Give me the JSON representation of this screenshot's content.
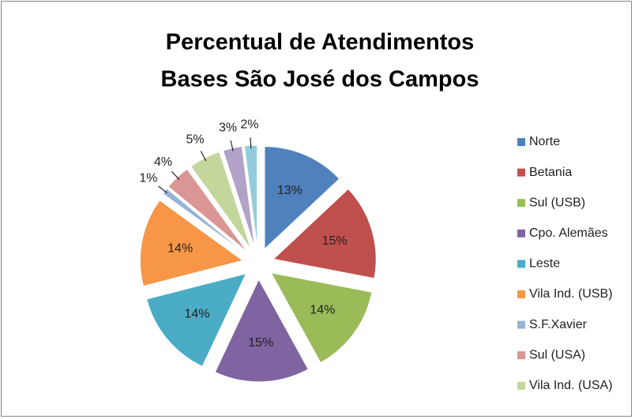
{
  "chart_data": {
    "type": "pie",
    "title": "Percentual de Atendimentos",
    "subtitle": "Bases São José dos Campos",
    "categories": [
      "Norte",
      "Betania",
      "Sul (USB)",
      "Cpo. Alemães",
      "Leste",
      "Vila Ind. (USB)",
      "S.F.Xavier",
      "Sul (USA)",
      "Vila Ind. (USA)",
      null,
      null
    ],
    "values": [
      13,
      15,
      14,
      15,
      14,
      14,
      1,
      4,
      5,
      3,
      2
    ],
    "value_labels": [
      "13%",
      "15%",
      "14%",
      "15%",
      "14%",
      "14%",
      "1%",
      "4%",
      "5%",
      "3%",
      "2%"
    ],
    "colors": [
      "#4f81bd",
      "#c0504d",
      "#9bbb59",
      "#8064a2",
      "#4bacc6",
      "#f79646",
      "#95b3d7",
      "#d99694",
      "#c3d69b",
      "#b3a2c7",
      "#93cddd"
    ],
    "legend": "right"
  }
}
